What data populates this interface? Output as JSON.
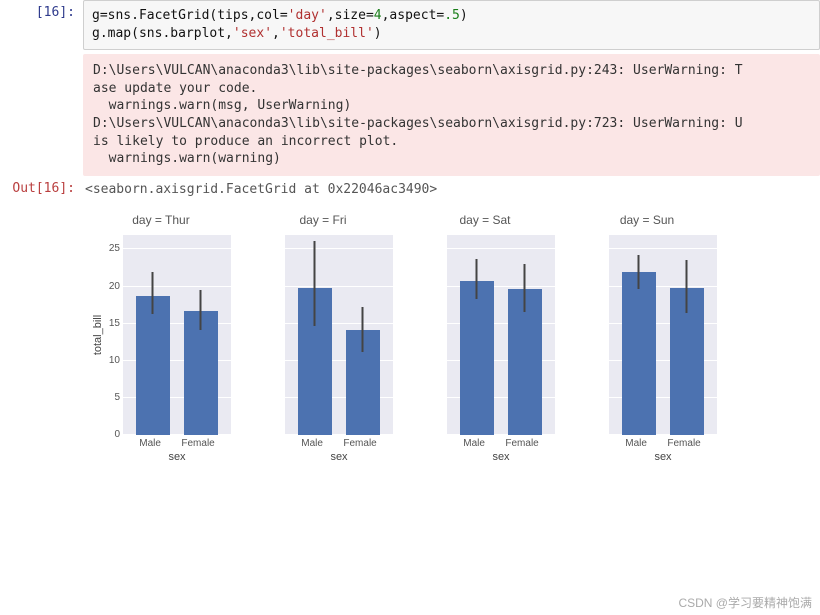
{
  "in_prompt": "[16]:",
  "out_prompt": "Out[16]:",
  "code": {
    "p1": "g=sns.FacetGrid(tips,col=",
    "s1": "'day'",
    "p2": ",size=",
    "n1": "4",
    "p3": ",aspect=",
    "n2": ".5",
    "p4": ")",
    "p5": "g.map(sns.barplot,",
    "s2": "'sex'",
    "p6": ",",
    "s3": "'total_bill'",
    "p7": ")"
  },
  "warning": "D:\\Users\\VULCAN\\anaconda3\\lib\\site-packages\\seaborn\\axisgrid.py:243: UserWarning: T\nase update your code.\n  warnings.warn(msg, UserWarning)\nD:\\Users\\VULCAN\\anaconda3\\lib\\site-packages\\seaborn\\axisgrid.py:723: UserWarning: U\nis likely to produce an incorrect plot.\n  warnings.warn(warning)",
  "repr": "<seaborn.axisgrid.FacetGrid at 0x22046ac3490>",
  "chart": {
    "type": "bar",
    "bar_color": "#4c72b0",
    "err_color": "#444444",
    "background_color": "#eaeaf2",
    "grid_color": "#ffffff",
    "ylabel": "total_bill",
    "xlabel": "sex",
    "ylim": [
      0,
      27
    ],
    "yticks": [
      0,
      5,
      10,
      15,
      20,
      25
    ],
    "categories": [
      "Male",
      "Female"
    ],
    "panels": [
      {
        "title": "day = Thur",
        "show_yticks": true,
        "show_ylabel": true,
        "bars": [
          {
            "val": 18.7,
            "lo": 16.3,
            "hi": 21.9
          },
          {
            "val": 16.7,
            "lo": 14.1,
            "hi": 19.5
          }
        ]
      },
      {
        "title": "day = Fri",
        "show_yticks": false,
        "show_ylabel": false,
        "bars": [
          {
            "val": 19.8,
            "lo": 14.7,
            "hi": 26.1
          },
          {
            "val": 14.1,
            "lo": 11.2,
            "hi": 17.2
          }
        ]
      },
      {
        "title": "day = Sat",
        "show_yticks": false,
        "show_ylabel": false,
        "bars": [
          {
            "val": 20.7,
            "lo": 18.3,
            "hi": 23.7
          },
          {
            "val": 19.7,
            "lo": 16.5,
            "hi": 23.0
          }
        ]
      },
      {
        "title": "day = Sun",
        "show_yticks": false,
        "show_ylabel": false,
        "bars": [
          {
            "val": 21.9,
            "lo": 19.6,
            "hi": 24.2
          },
          {
            "val": 19.8,
            "lo": 16.4,
            "hi": 23.6
          }
        ]
      }
    ]
  },
  "watermark": "CSDN @学习要精神饱满"
}
